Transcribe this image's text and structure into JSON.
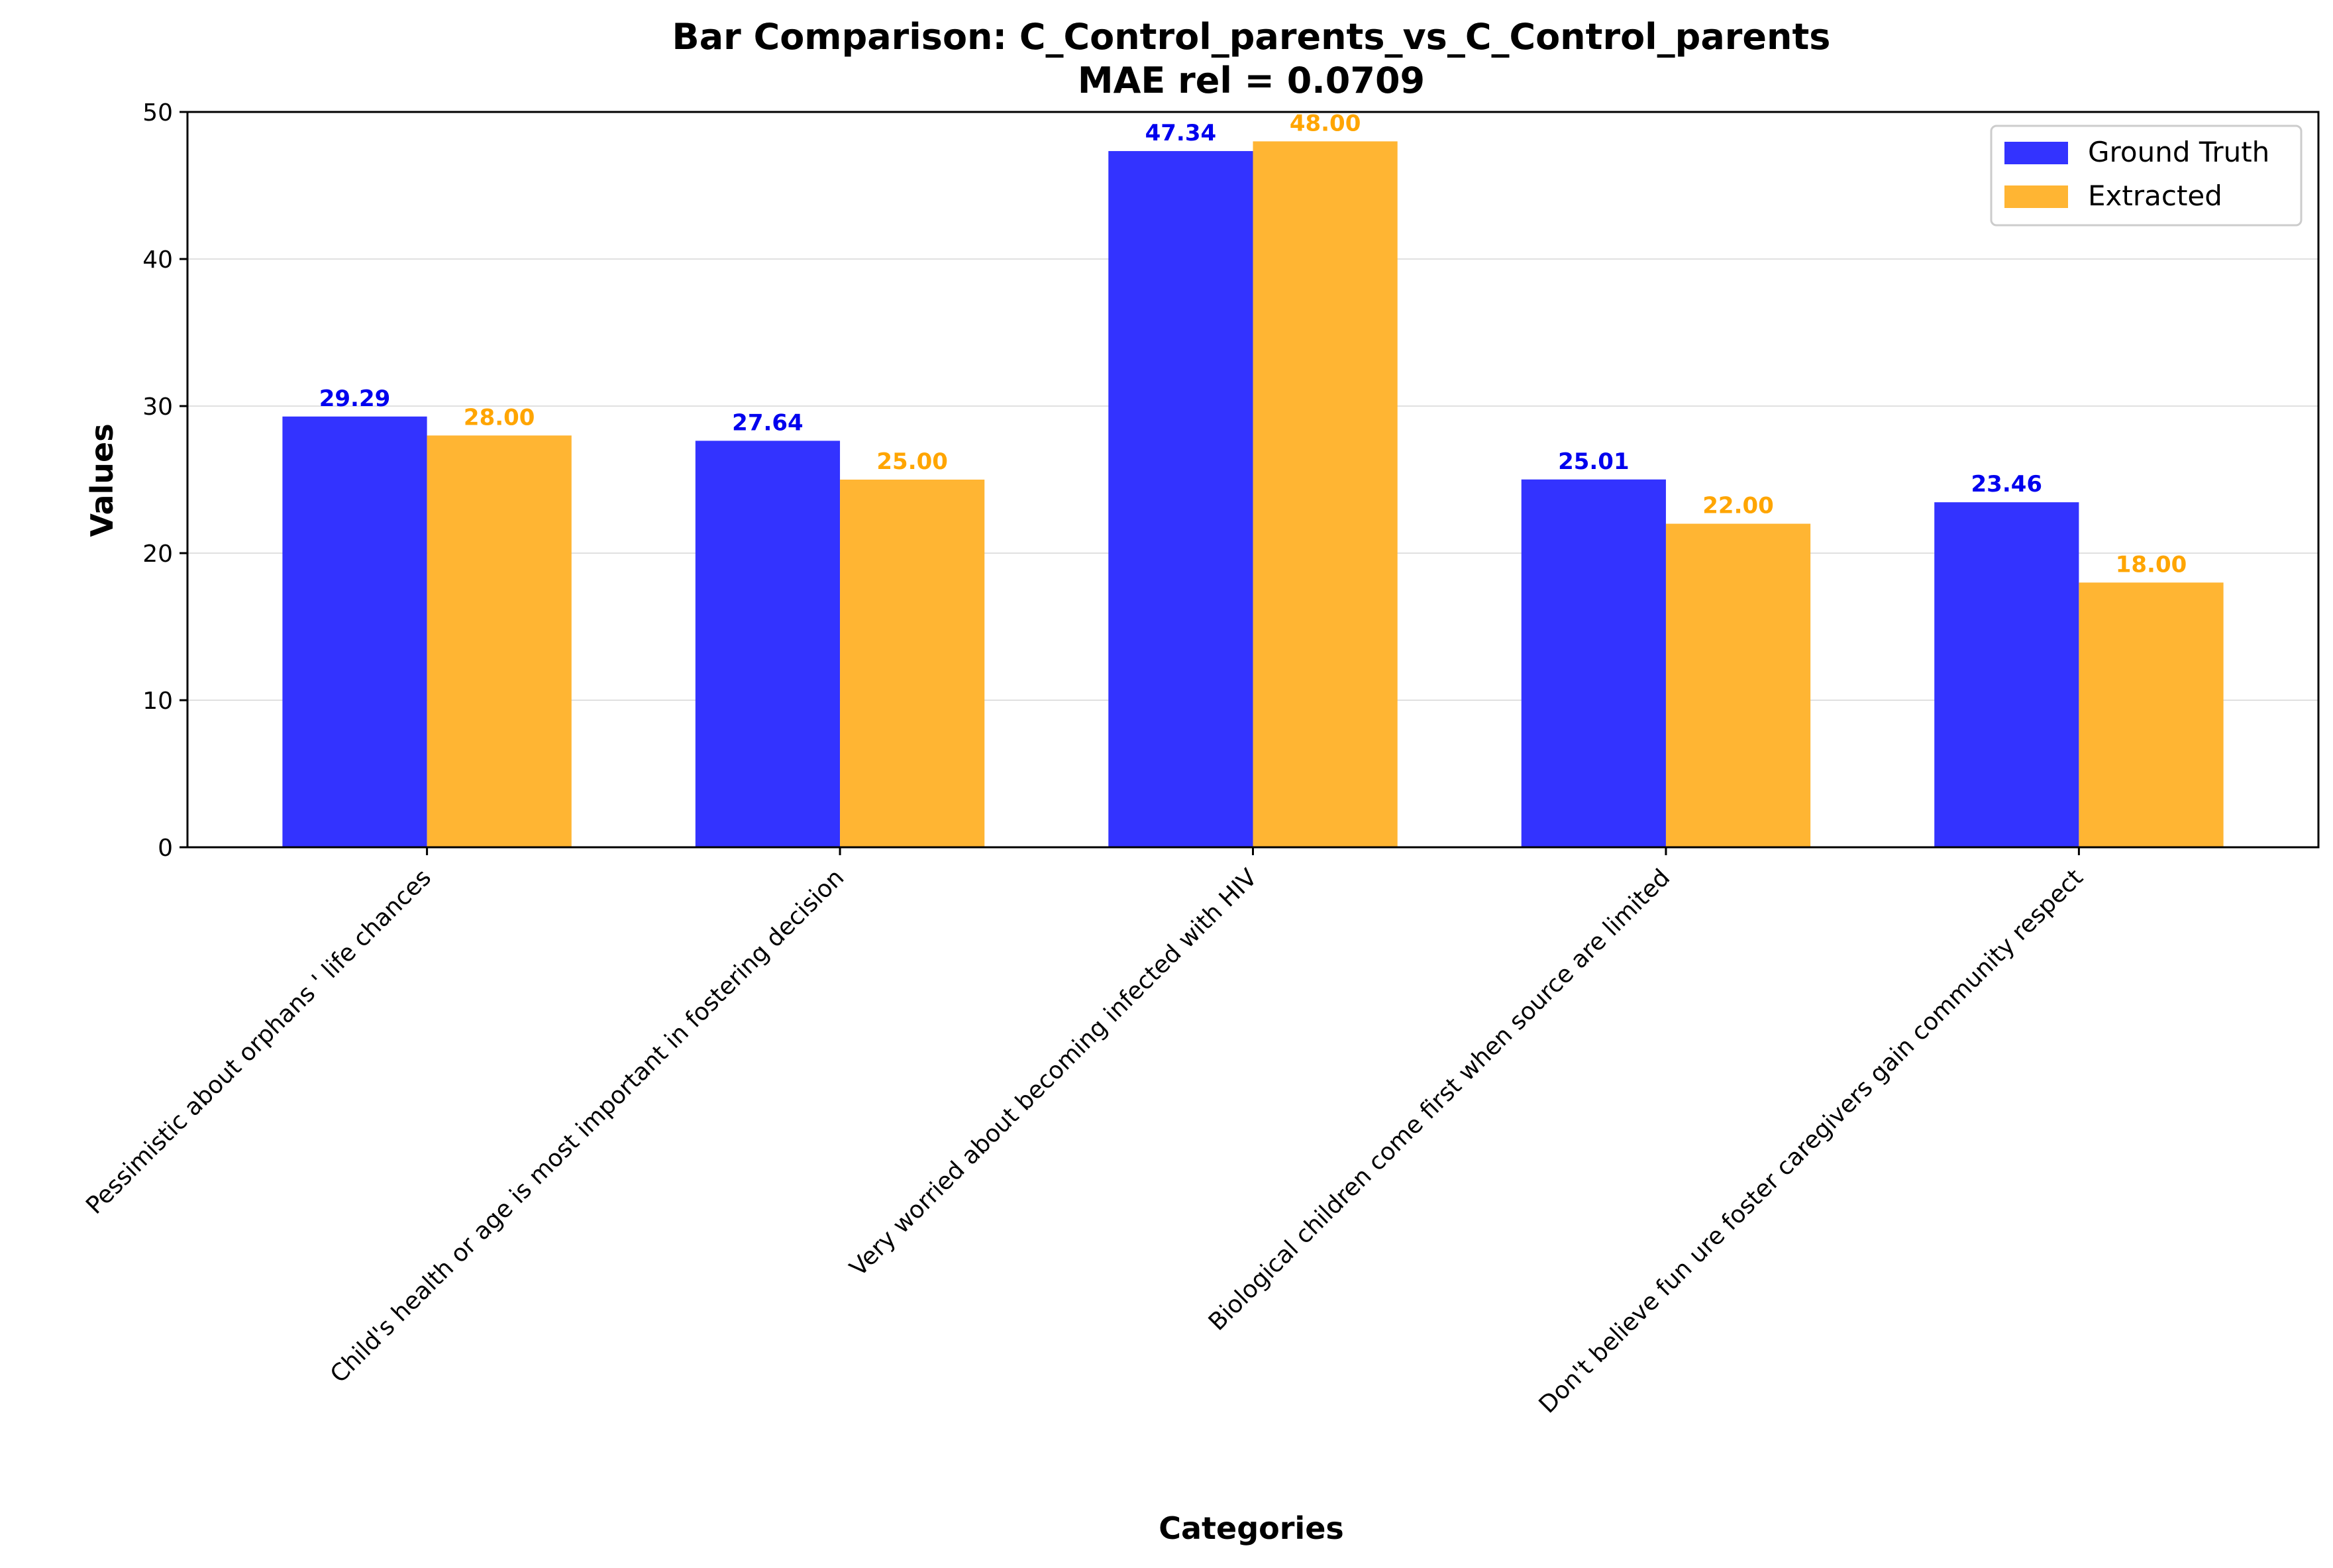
{
  "chart_data": {
    "type": "bar",
    "title": "Bar Comparison: C_Control_parents_vs_C_Control_parents",
    "subtitle": "MAE rel = 0.0709",
    "xlabel": "Categories",
    "ylabel": "Values",
    "ylim": [
      0,
      50
    ],
    "yticks": [
      "0",
      "10",
      "20",
      "30",
      "40",
      "50"
    ],
    "grid": "horizontal",
    "legend_position": "top-right",
    "categories": [
      "Pessimistic about orphans ' life chances",
      "Child's health or age is most important in fostering decision",
      "Very worried about becoming infected with HIV",
      "Biological children come first when source are limited",
      "Don't believe fun ure foster caregivers gain community respect"
    ],
    "series": [
      {
        "name": "Ground Truth",
        "color": "#3333ff",
        "label_color": "#0000ee",
        "values": [
          29.29,
          27.64,
          47.34,
          25.01,
          23.46
        ],
        "labels": [
          "29.29",
          "27.64",
          "47.34",
          "25.01",
          "23.46"
        ]
      },
      {
        "name": "Extracted",
        "color": "#ffb533",
        "label_color": "#ffa500",
        "values": [
          28.0,
          25.0,
          48.0,
          22.0,
          18.0
        ],
        "labels": [
          "28.00",
          "25.00",
          "48.00",
          "22.00",
          "18.00"
        ]
      }
    ]
  }
}
